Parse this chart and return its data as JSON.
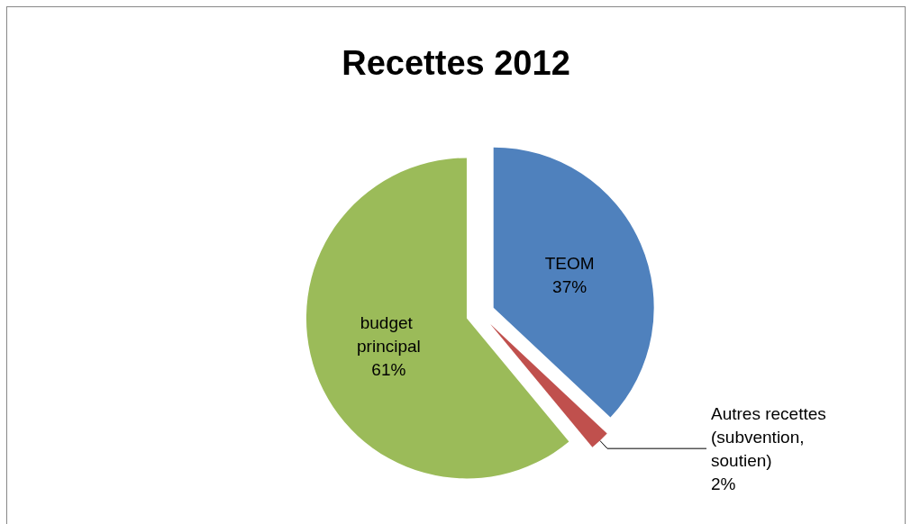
{
  "chart_data": {
    "type": "pie",
    "title": "Recettes 2012",
    "categories": [
      "TEOM",
      "Autres recettes (subvention, soutien)",
      "budget principal"
    ],
    "values": [
      37,
      2,
      61
    ],
    "colors": [
      "#4f81bd",
      "#c0504d",
      "#9bbb59"
    ],
    "value_labels": [
      "37%",
      "2%",
      "61%"
    ],
    "legend": false
  }
}
